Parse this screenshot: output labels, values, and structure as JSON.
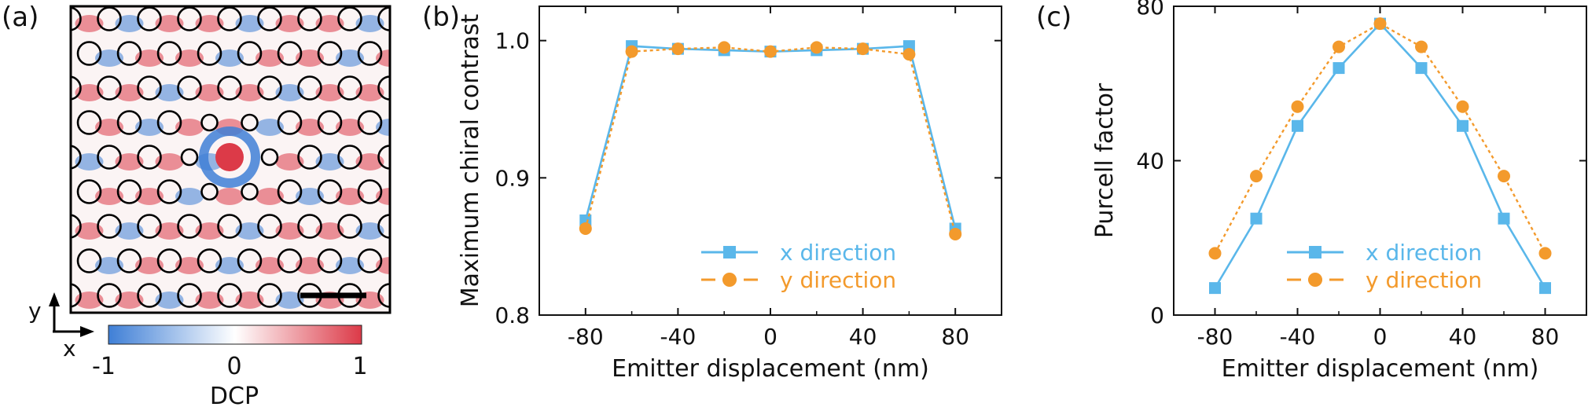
{
  "panels": {
    "a": "(a)",
    "b": "(b)",
    "c": "(c)"
  },
  "map_panel": {
    "axis_y": "y",
    "axis_x": "x",
    "colorbar_label": "DCP",
    "colorbar_ticks": [
      "-1",
      "0",
      "1"
    ],
    "colors": {
      "negative": "#3f7fd6",
      "zero": "#ffffff",
      "positive": "#dc3a48"
    },
    "hole_lattice": "triangular, with smaller holes near the center",
    "center_feature": "red spot with blue ring"
  },
  "chart_data": [
    {
      "type": "line",
      "title": "",
      "xlabel": "Emitter displacement (nm)",
      "ylabel": "Maximum chiral contrast",
      "xlim": [
        -100,
        100
      ],
      "ylim": [
        0.8,
        1.025
      ],
      "xticks": [
        "-80",
        "-40",
        "0",
        "40",
        "80"
      ],
      "xtick_values": [
        -80,
        -40,
        0,
        40,
        80
      ],
      "yticks": [
        "0.8",
        "0.9",
        "1.0"
      ],
      "ytick_values": [
        0.8,
        0.9,
        1.0
      ],
      "x": [
        -80,
        -60,
        -40,
        -20,
        0,
        20,
        40,
        60,
        80
      ],
      "series": [
        {
          "name": "x direction",
          "color": "#5ab7ea",
          "marker": "square",
          "line": "solid",
          "values": [
            0.869,
            0.996,
            0.994,
            0.993,
            0.992,
            0.993,
            0.994,
            0.996,
            0.863
          ]
        },
        {
          "name": "y direction",
          "color": "#f39a2c",
          "marker": "circle",
          "line": "dotted",
          "values": [
            0.863,
            0.992,
            0.994,
            0.995,
            0.992,
            0.995,
            0.994,
            0.99,
            0.859
          ]
        }
      ],
      "legend": "bottom-center"
    },
    {
      "type": "line",
      "title": "",
      "xlabel": "Emitter displacement (nm)",
      "ylabel": "Purcell factor",
      "xlim": [
        -100,
        100
      ],
      "ylim": [
        0,
        80
      ],
      "xticks": [
        "-80",
        "-40",
        "0",
        "40",
        "80"
      ],
      "xtick_values": [
        -80,
        -40,
        0,
        40,
        80
      ],
      "yticks": [
        "0",
        "40",
        "80"
      ],
      "ytick_values": [
        0,
        40,
        80
      ],
      "x": [
        -80,
        -60,
        -40,
        -20,
        0,
        20,
        40,
        60,
        80
      ],
      "series": [
        {
          "name": "x direction",
          "color": "#5ab7ea",
          "marker": "square",
          "line": "solid",
          "values": [
            7,
            25,
            49,
            64,
            75.5,
            64,
            49,
            25,
            7
          ]
        },
        {
          "name": "y direction",
          "color": "#f39a2c",
          "marker": "circle",
          "line": "dotted",
          "values": [
            16,
            36,
            54,
            69.5,
            75.5,
            69.5,
            54,
            36,
            16
          ]
        }
      ],
      "legend": "bottom-center"
    }
  ]
}
